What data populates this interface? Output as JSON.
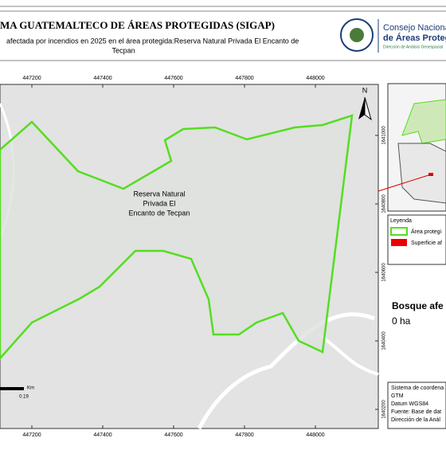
{
  "header": {
    "title": "MA GUATEMALTECO DE ÁREAS PROTEGIDAS (SIGAP)",
    "subtitle_lines": [
      "afectada por incendios en 2025 en el área protegida:Reserva Natural Privada El Encanto de",
      "Tecpan"
    ],
    "logo_lines": [
      "Consejo Nacional",
      "de Áreas Protegi",
      "Dirección de Análisis Geoespacial"
    ]
  },
  "map": {
    "x_labels": [
      447200,
      447400,
      447600,
      447800,
      448000
    ],
    "y_labels": [
      1641000,
      1640800,
      1640600,
      1640400,
      1640200
    ],
    "north": "N",
    "area_label": [
      "Reserva Natural",
      "Privada El",
      "Encanto de Tecpan"
    ],
    "scale": {
      "unit": "Km",
      "value": "0.19"
    }
  },
  "legend": {
    "title": "Leyenda",
    "items": [
      "Área protegi",
      "Superficie af"
    ]
  },
  "summary": {
    "label": "Bosque afe",
    "value": "0 ha"
  },
  "info": [
    "Sistema de coordena",
    "GTM",
    "Datum WGS84",
    "Fuente: Base de dat",
    "Dirección de la Anál"
  ]
}
